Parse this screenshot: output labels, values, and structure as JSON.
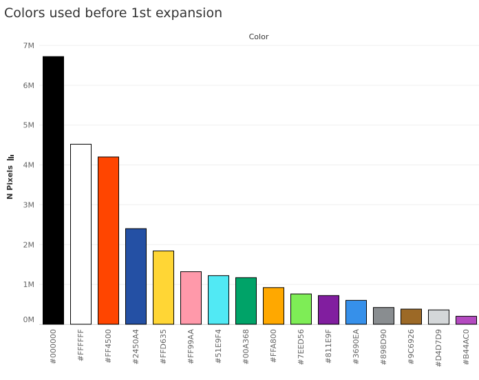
{
  "chart_data": {
    "type": "bar",
    "title": "Colors used before 1st expansion",
    "column_header": "Color",
    "ylabel": "N Pixels",
    "ylim": [
      0,
      7000000
    ],
    "yticks": [
      {
        "value": 0,
        "label": "0M"
      },
      {
        "value": 1000000,
        "label": "1M"
      },
      {
        "value": 2000000,
        "label": "2M"
      },
      {
        "value": 3000000,
        "label": "3M"
      },
      {
        "value": 4000000,
        "label": "4M"
      },
      {
        "value": 5000000,
        "label": "5M"
      },
      {
        "value": 6000000,
        "label": "6M"
      },
      {
        "value": 7000000,
        "label": "7M"
      }
    ],
    "grid": true,
    "categories": [
      "#000000",
      "#FFFFFF",
      "#FF4500",
      "#2450A4",
      "#FFD635",
      "#FF99AA",
      "#51E9F4",
      "#00A368",
      "#FFA800",
      "#7EED56",
      "#811E9F",
      "#3690EA",
      "#898D90",
      "#9C6926",
      "#D4D7D9",
      "#B44AC0"
    ],
    "values": [
      6720000,
      4520000,
      4200000,
      2400000,
      1840000,
      1320000,
      1220000,
      1170000,
      920000,
      760000,
      720000,
      600000,
      420000,
      380000,
      360000,
      200000
    ],
    "colors": [
      "#000000",
      "#FFFFFF",
      "#FF4500",
      "#2450A4",
      "#FFD635",
      "#FF99AA",
      "#51E9F4",
      "#00A368",
      "#FFA800",
      "#7EED56",
      "#811E9F",
      "#3690EA",
      "#898D90",
      "#9C6926",
      "#D4D7D9",
      "#B44AC0"
    ]
  }
}
